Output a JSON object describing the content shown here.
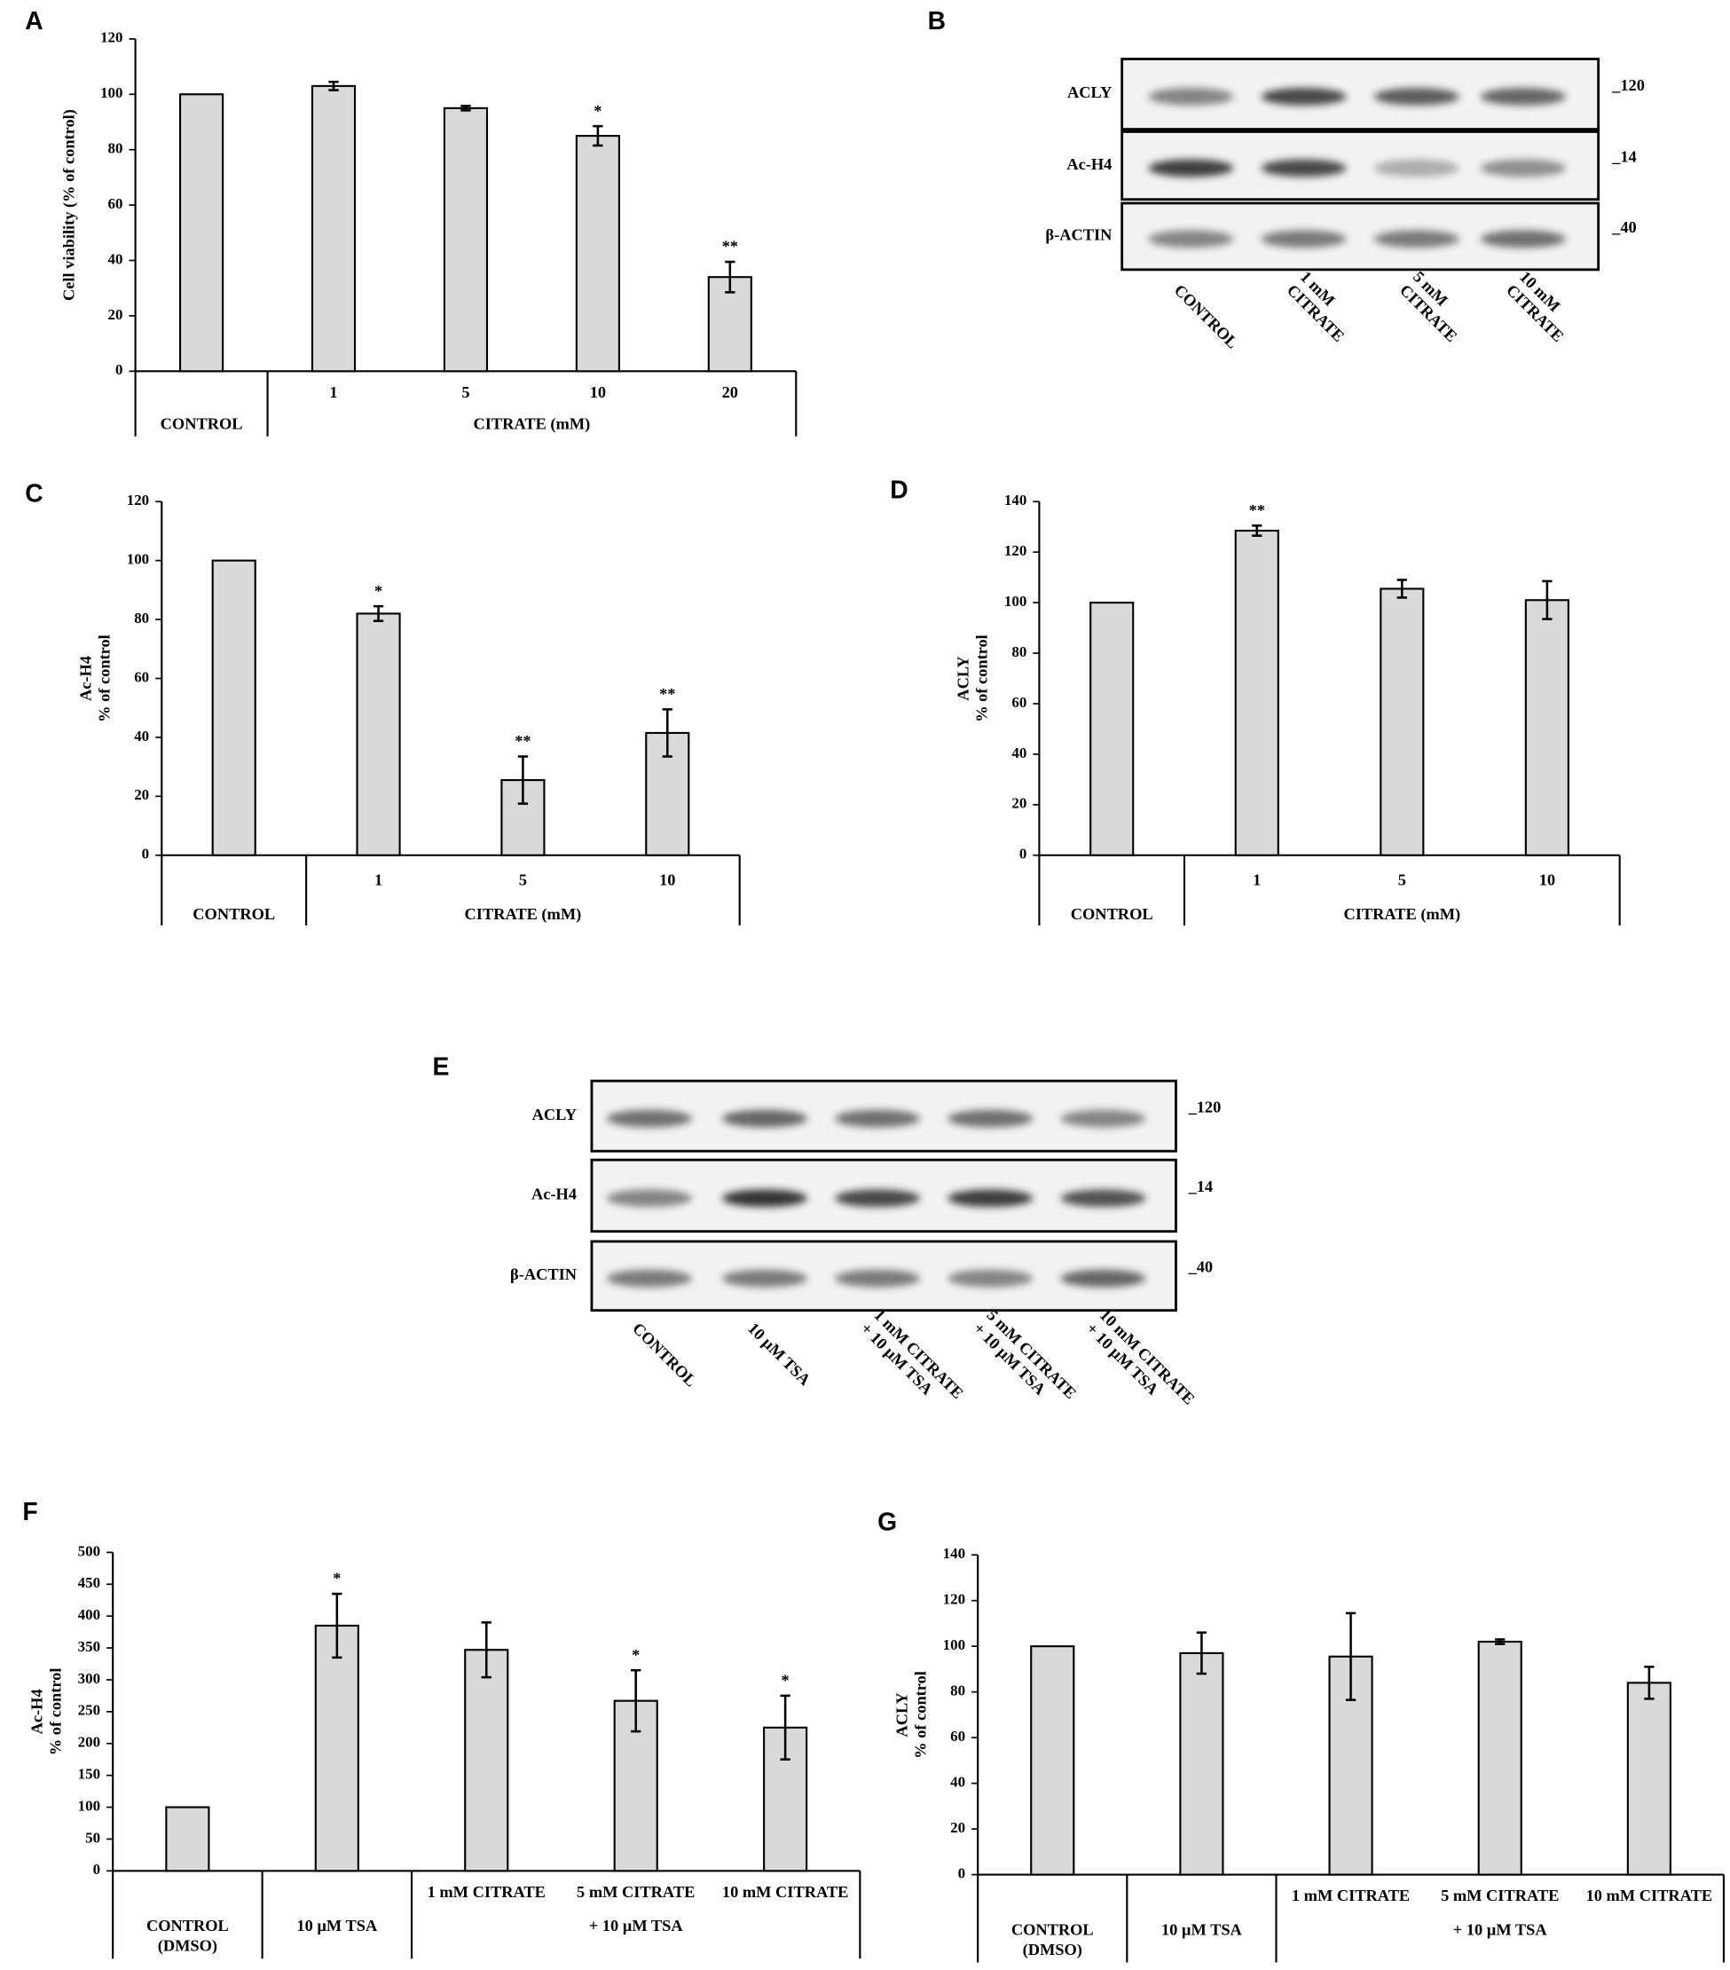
{
  "chart_data": [
    {
      "letter": "A",
      "type": "bar",
      "y_label": [
        "Cell viability (% of control)"
      ],
      "categories": [
        "CONTROL",
        "1",
        "5",
        "10",
        "20"
      ],
      "group_label": "CITRATE (mM)",
      "values": [
        100,
        103,
        95,
        85,
        34
      ],
      "errors": [
        0,
        1.5,
        0.8,
        3.5,
        5.5
      ],
      "significance": [
        null,
        null,
        null,
        "*",
        "**"
      ],
      "color": "#d9d9d9",
      "ylim": [
        0,
        120
      ],
      "yticks": [
        0,
        20,
        40,
        60,
        80,
        100,
        120
      ]
    },
    {
      "letter": "C",
      "type": "bar",
      "y_label": [
        "Ac-H4",
        "% of control"
      ],
      "categories": [
        "CONTROL",
        "1",
        "5",
        "10"
      ],
      "group_label": "CITRATE (mM)",
      "values": [
        100,
        82,
        25.5,
        41.5
      ],
      "errors": [
        0,
        2.5,
        8,
        8
      ],
      "significance": [
        null,
        "*",
        "**",
        "**"
      ],
      "color": "#d9d9d9",
      "ylim": [
        0,
        120
      ],
      "yticks": [
        0,
        20,
        40,
        60,
        80,
        100,
        120
      ]
    },
    {
      "letter": "D",
      "type": "bar",
      "y_label": [
        "ACLY",
        "% of control"
      ],
      "categories": [
        "CONTROL",
        "1",
        "5",
        "10"
      ],
      "group_label": "CITRATE (mM)",
      "values": [
        100,
        128.5,
        105.5,
        101
      ],
      "errors": [
        0,
        2,
        3.5,
        7.5
      ],
      "significance": [
        null,
        "**",
        null,
        null
      ],
      "color": "#d9d9d9",
      "ylim": [
        0,
        140
      ],
      "yticks": [
        0,
        20,
        40,
        60,
        80,
        100,
        120,
        140
      ]
    },
    {
      "letter": "F",
      "type": "bar",
      "y_label": [
        "Ac-H4",
        "% of control"
      ],
      "categories": [
        [
          "CONTROL",
          "(DMSO)"
        ],
        [
          "10 µM TSA"
        ],
        [
          "1 mM CITRATE"
        ],
        [
          "5 mM CITRATE"
        ],
        [
          "10 mM CITRATE"
        ]
      ],
      "group_label": "+ 10 µM TSA",
      "values": [
        100,
        385,
        347,
        267,
        225
      ],
      "errors": [
        0,
        50,
        43,
        48,
        50
      ],
      "significance": [
        null,
        "*",
        null,
        "*",
        "*"
      ],
      "color": "#d9d9d9",
      "ylim": [
        0,
        500
      ],
      "yticks": [
        0,
        50,
        100,
        150,
        200,
        250,
        300,
        350,
        400,
        450,
        500
      ]
    },
    {
      "letter": "G",
      "type": "bar",
      "y_label": [
        "ACLY",
        "% of control"
      ],
      "categories": [
        [
          "CONTROL",
          "(DMSO)"
        ],
        [
          "10 µM TSA"
        ],
        [
          "1 mM CITRATE"
        ],
        [
          "5 mM CITRATE"
        ],
        [
          "10 mM CITRATE"
        ]
      ],
      "group_label": "+ 10 µM TSA",
      "values": [
        100,
        97,
        95.5,
        102,
        84
      ],
      "errors": [
        0,
        9,
        19,
        1,
        7
      ],
      "significance": [
        null,
        null,
        null,
        null,
        null
      ],
      "color": "#d9d9d9",
      "ylim": [
        0,
        140
      ],
      "yticks": [
        0,
        20,
        40,
        60,
        80,
        100,
        120,
        140
      ]
    }
  ],
  "blots": [
    {
      "letter": "B",
      "rows": [
        {
          "label": "ACLY",
          "marker": "_120"
        },
        {
          "label": "Ac-H4",
          "marker": "_14"
        },
        {
          "label": "β-ACTIN",
          "marker": "_40"
        }
      ],
      "lanes": [
        [
          "CONTROL"
        ],
        [
          "1 mM",
          "CITRATE"
        ],
        [
          "5 mM",
          "CITRATE"
        ],
        [
          "10 mM",
          "CITRATE"
        ]
      ]
    },
    {
      "letter": "E",
      "rows": [
        {
          "label": "ACLY",
          "marker": "_120"
        },
        {
          "label": "Ac-H4",
          "marker": "_14"
        },
        {
          "label": "β-ACTIN",
          "marker": "_40"
        }
      ],
      "lanes": [
        [
          "CONTROL"
        ],
        [
          "10 µM TSA"
        ],
        [
          "1 mM CITRATE",
          "+ 10 µM TSA"
        ],
        [
          "5 mM CITRATE",
          "+ 10 µM TSA"
        ],
        [
          "10 mM CITRATE",
          "+ 10 µM TSA"
        ]
      ]
    }
  ]
}
